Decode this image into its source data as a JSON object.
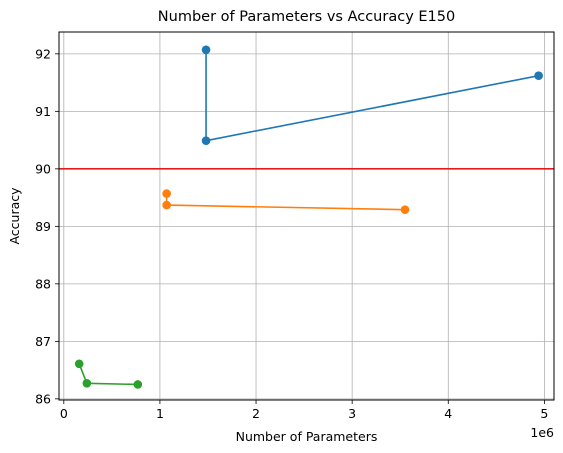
{
  "chart_data": {
    "type": "line",
    "title": "Number of Parameters vs Accuracy E150",
    "xlabel": "Number of Parameters",
    "ylabel": "Accuracy",
    "x_offset_label": "1e6",
    "xlim": [
      -0.05,
      5.1
    ],
    "ylim": [
      85.98,
      92.38
    ],
    "x_ticks": [
      0,
      1,
      2,
      3,
      4,
      5
    ],
    "y_ticks": [
      86,
      87,
      88,
      89,
      90,
      91,
      92
    ],
    "grid": true,
    "series": [
      {
        "color": "#1f77b4",
        "marker": "circle",
        "x": [
          1.48,
          1.48,
          4.94
        ],
        "y": [
          92.07,
          90.49,
          91.62
        ]
      },
      {
        "color": "#ff7f0e",
        "marker": "circle",
        "x": [
          1.07,
          1.07,
          3.55
        ],
        "y": [
          89.57,
          89.37,
          89.29
        ]
      },
      {
        "color": "#2ca02c",
        "marker": "circle",
        "x": [
          0.16,
          0.24,
          0.77
        ],
        "y": [
          86.61,
          86.27,
          86.25
        ]
      }
    ],
    "reference_lines": [
      {
        "orientation": "horizontal",
        "y": 90,
        "color": "#e31a1c"
      }
    ]
  }
}
